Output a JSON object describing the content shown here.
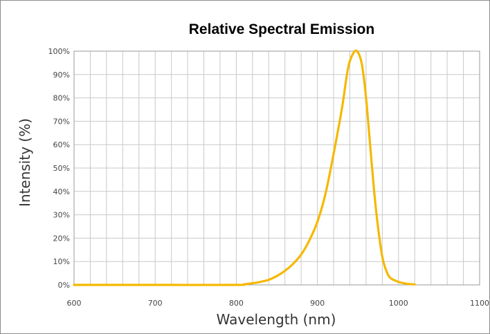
{
  "chart_data": {
    "type": "line",
    "title": "Relative Spectral Emission",
    "xlabel": "Wavelength (nm)",
    "ylabel": "Intensity (%)",
    "xlim": [
      600,
      1100
    ],
    "ylim": [
      0,
      100
    ],
    "x_ticks": [
      "600",
      "700",
      "800",
      "900",
      "1000",
      "1100"
    ],
    "y_ticks": [
      "0%",
      "10%",
      "20%",
      "30%",
      "40%",
      "50%",
      "60%",
      "70%",
      "80%",
      "90%",
      "100%"
    ],
    "grid": true,
    "legend": "none",
    "line_color": "#F5B800",
    "series": [
      {
        "x": [
          600,
          700,
          800,
          810,
          820,
          830,
          840,
          850,
          860,
          870,
          880,
          890,
          900,
          910,
          920,
          930,
          938,
          945,
          950,
          955,
          960,
          965,
          970,
          975,
          980,
          985,
          990,
          1000,
          1010,
          1020
        ],
        "y": [
          0,
          0,
          0,
          0.3,
          0.7,
          1.3,
          2.2,
          3.8,
          6,
          9,
          13,
          19,
          27,
          39,
          56,
          75,
          93,
          99.5,
          99.5,
          94,
          80,
          60,
          40,
          24,
          12,
          6,
          3,
          1.3,
          0.5,
          0.2
        ]
      }
    ]
  }
}
